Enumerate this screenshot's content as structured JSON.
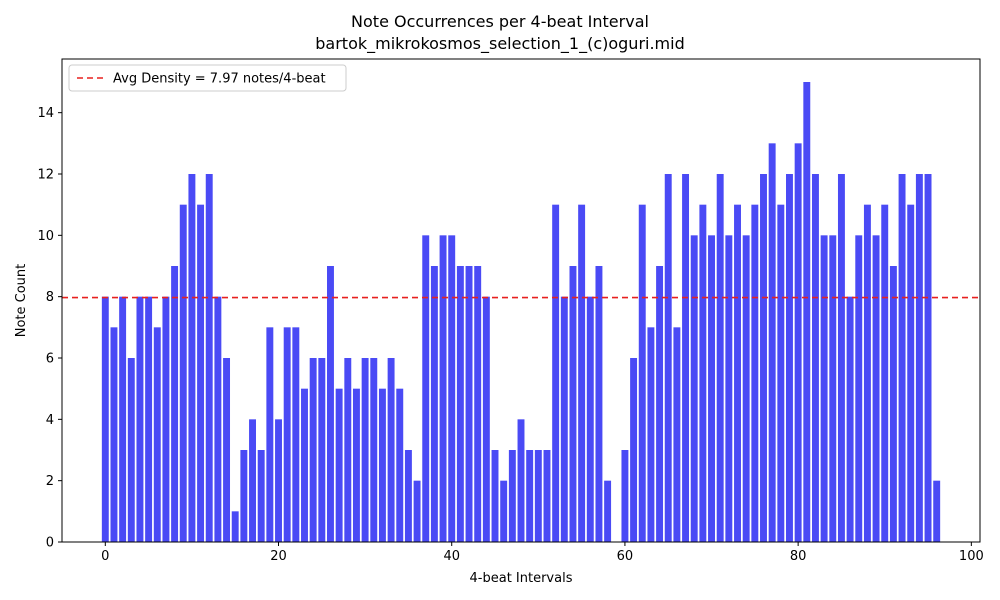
{
  "chart_data": {
    "type": "bar",
    "title": "Note Occurrences per 4-beat Interval",
    "subtitle": "bartok_mikrokosmos_selection_1_(c)oguri.mid",
    "xlabel": "4-beat Intervals",
    "ylabel": "Note Count",
    "xlim": [
      -5,
      101
    ],
    "ylim": [
      0,
      15.75
    ],
    "xticks": [
      0,
      20,
      40,
      60,
      80,
      100
    ],
    "yticks": [
      0,
      2,
      4,
      6,
      8,
      10,
      12,
      14
    ],
    "grid": false,
    "legend_position": "top-left",
    "bar_color": "#4a4af5",
    "avg_line": {
      "label": "Avg Density = 7.97 notes/4-beat",
      "value": 7.97,
      "color": "#e8201e",
      "style": "dashed"
    },
    "x": [
      0,
      1,
      2,
      3,
      4,
      5,
      6,
      7,
      8,
      9,
      10,
      11,
      12,
      13,
      14,
      15,
      16,
      17,
      18,
      19,
      20,
      21,
      22,
      23,
      24,
      25,
      26,
      27,
      28,
      29,
      30,
      31,
      32,
      33,
      34,
      35,
      36,
      37,
      38,
      39,
      40,
      41,
      42,
      43,
      44,
      45,
      46,
      47,
      48,
      49,
      50,
      51,
      52,
      53,
      54,
      55,
      56,
      57,
      58,
      59,
      60,
      61,
      62,
      63,
      64,
      65,
      66,
      67,
      68,
      69,
      70,
      71,
      72,
      73,
      74,
      75,
      76,
      77,
      78,
      79,
      80,
      81,
      82,
      83,
      84,
      85,
      86,
      87,
      88,
      89,
      90,
      91,
      92,
      93,
      94,
      95,
      96
    ],
    "values": [
      8,
      7,
      8,
      6,
      8,
      8,
      7,
      8,
      9,
      11,
      12,
      11,
      12,
      8,
      6,
      1,
      3,
      4,
      3,
      7,
      4,
      7,
      7,
      5,
      6,
      6,
      9,
      5,
      6,
      5,
      6,
      6,
      5,
      6,
      5,
      3,
      2,
      10,
      9,
      10,
      10,
      9,
      9,
      9,
      8,
      3,
      2,
      3,
      4,
      3,
      3,
      3,
      11,
      8,
      9,
      11,
      8,
      9,
      2,
      0,
      3,
      6,
      11,
      7,
      9,
      12,
      7,
      12,
      10,
      11,
      10,
      12,
      10,
      11,
      10,
      11,
      12,
      13,
      11,
      12,
      13,
      15,
      12,
      10,
      10,
      12,
      8,
      10,
      11,
      10,
      11,
      9,
      12,
      11,
      12,
      12,
      2
    ]
  }
}
